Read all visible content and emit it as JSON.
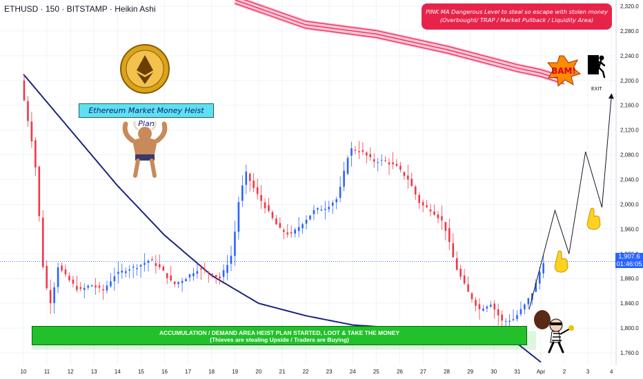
{
  "header": {
    "symbol_line": "ETHUSD · 150 · BITSTAMP · Heikin Ashi"
  },
  "annotations": {
    "pink_callout": "PINK MA Dangerous Level to steal so escape with stolen money (Overbought/ TRAP / Market Pullback / Liquidity Area)",
    "title_box": "Ethereum Market Money Heist Plan",
    "demand_line1": "ACCUMULATION / DEMAND AREA HEIST PLAN STARTED, LOOT & TAKE THE MONEY",
    "demand_line2": "(Thieves are stealing Upside / Traders are Buying)",
    "bam_text": "BAM!",
    "exit_text": "EXIT"
  },
  "price_tag": {
    "price": "1,907.6",
    "timer": "01:46:05"
  },
  "colors": {
    "bull_candle": "#2962ff",
    "bear_candle": "#f23645",
    "ma_blue": "#1a237e",
    "ma_pink": "#f23668",
    "demand_zone": "#22c02a",
    "callout": "#e8234a"
  },
  "icons": [
    "ethereum-coin-icon",
    "bull-mascot-icon",
    "bam-burst-icon",
    "running-exit-icon",
    "thief-icon",
    "pointing-hand-icon"
  ],
  "chart_data": {
    "type": "candlestick",
    "ylim": [
      1740,
      2330
    ],
    "y_ticks": [
      1760,
      1800,
      1840,
      1880,
      1920,
      1960,
      2000,
      2040,
      2080,
      2120,
      2160,
      2200,
      2240,
      2280,
      2320
    ],
    "y_tick_labels": [
      "1,760.0",
      "1,800.0",
      "1,840.0",
      "1,880.0",
      "1,920.0",
      "1,960.0",
      "2,000.0",
      "2,040.0",
      "2,080.0",
      "2,120.0",
      "2,160.0",
      "2,200.0",
      "2,240.0",
      "2,280.0",
      "2,320.0"
    ],
    "x_ticks": [
      "10",
      "11",
      "12",
      "13",
      "14",
      "15",
      "16",
      "17",
      "18",
      "19",
      "20",
      "21",
      "22",
      "23",
      "24",
      "25",
      "26",
      "27",
      "28",
      "29",
      "30",
      "31",
      "Apr",
      "2",
      "3",
      "4"
    ],
    "price_path": [
      [
        10.0,
        2200
      ],
      [
        10.3,
        2140
      ],
      [
        10.6,
        2080
      ],
      [
        10.8,
        1980
      ],
      [
        11.0,
        1880
      ],
      [
        11.3,
        1840
      ],
      [
        11.6,
        1900
      ],
      [
        12.0,
        1880
      ],
      [
        12.5,
        1860
      ],
      [
        13.0,
        1870
      ],
      [
        13.5,
        1860
      ],
      [
        14.0,
        1885
      ],
      [
        14.5,
        1895
      ],
      [
        15.0,
        1900
      ],
      [
        15.5,
        1910
      ],
      [
        16.0,
        1895
      ],
      [
        16.5,
        1870
      ],
      [
        17.0,
        1880
      ],
      [
        17.5,
        1895
      ],
      [
        18.0,
        1890
      ],
      [
        18.5,
        1880
      ],
      [
        19.0,
        1920
      ],
      [
        19.3,
        2010
      ],
      [
        19.6,
        2050
      ],
      [
        20.0,
        2020
      ],
      [
        20.5,
        1990
      ],
      [
        21.0,
        1960
      ],
      [
        21.5,
        1950
      ],
      [
        22.0,
        1970
      ],
      [
        22.5,
        1990
      ],
      [
        23.0,
        1995
      ],
      [
        23.5,
        2010
      ],
      [
        24.0,
        2090
      ],
      [
        24.5,
        2085
      ],
      [
        25.0,
        2070
      ],
      [
        25.5,
        2070
      ],
      [
        26.0,
        2060
      ],
      [
        26.5,
        2040
      ],
      [
        27.0,
        2000
      ],
      [
        27.5,
        1990
      ],
      [
        28.0,
        1970
      ],
      [
        28.5,
        1900
      ],
      [
        29.0,
        1860
      ],
      [
        29.5,
        1830
      ],
      [
        30.0,
        1840
      ],
      [
        30.5,
        1810
      ],
      [
        31.0,
        1815
      ],
      [
        31.5,
        1840
      ],
      [
        31.8,
        1860
      ],
      [
        32.0,
        1880
      ],
      [
        32.2,
        1907.6
      ]
    ],
    "ma_blue": [
      [
        10.0,
        2210
      ],
      [
        12.0,
        2120
      ],
      [
        14.0,
        2030
      ],
      [
        16.0,
        1950
      ],
      [
        18.0,
        1885
      ],
      [
        20.0,
        1840
      ],
      [
        22.0,
        1820
      ],
      [
        24.0,
        1805
      ],
      [
        26.0,
        1800
      ],
      [
        28.0,
        1795
      ],
      [
        30.0,
        1785
      ],
      [
        31.0,
        1775
      ],
      [
        32.0,
        1745
      ]
    ],
    "ma_pink": [
      [
        19.0,
        2330
      ],
      [
        22.0,
        2290
      ],
      [
        25.0,
        2275
      ],
      [
        28.0,
        2250
      ],
      [
        30.0,
        2230
      ],
      [
        31.0,
        2220
      ],
      [
        32.0,
        2212
      ],
      [
        33.0,
        2200
      ]
    ],
    "projection": [
      [
        31.5,
        1830
      ],
      [
        32.6,
        1990
      ],
      [
        33.2,
        1920
      ],
      [
        33.9,
        2085
      ],
      [
        34.6,
        1995
      ],
      [
        35.0,
        2175
      ]
    ],
    "demand_zone": {
      "from_x": 10.35,
      "to_x": 31.8,
      "low": 1765,
      "high": 1795
    },
    "last_price": 1907.6
  }
}
